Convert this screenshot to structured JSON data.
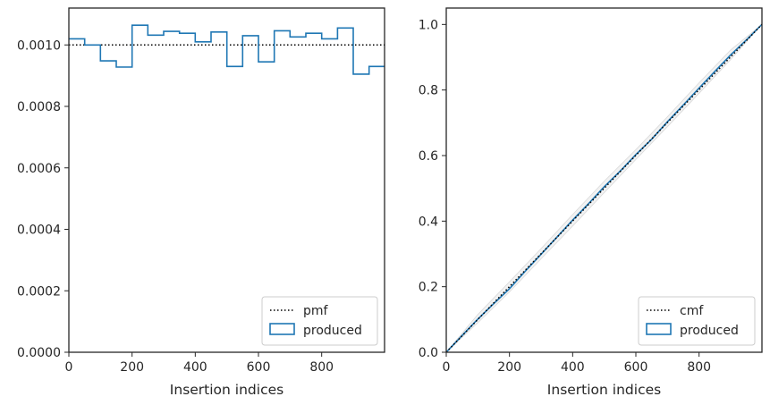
{
  "chart_data": [
    {
      "type": "step",
      "xlabel": "Insertion indices",
      "ylabel": "",
      "xlim": [
        0,
        999
      ],
      "ylim": [
        0,
        0.00112
      ],
      "xticks": [
        0,
        200,
        400,
        600,
        800
      ],
      "xtick_labels": [
        "0",
        "200",
        "400",
        "600",
        "800"
      ],
      "yticks": [
        0,
        0.0002,
        0.0004,
        0.0006,
        0.0008,
        0.001
      ],
      "ytick_labels": [
        "0.0000",
        "0.0002",
        "0.0004",
        "0.0006",
        "0.0008",
        "0.0010"
      ],
      "legend": {
        "location": "lower right",
        "entries": [
          "pmf",
          "produced"
        ]
      },
      "reference": {
        "name": "pmf",
        "style": "dotted",
        "color": "#000000",
        "y": 0.001
      },
      "series": [
        {
          "name": "produced",
          "color": "#1f77b4",
          "bin_edges": [
            0,
            50,
            100,
            150,
            200,
            250,
            300,
            350,
            400,
            450,
            500,
            550,
            600,
            650,
            700,
            750,
            800,
            850,
            900,
            950,
            1000
          ],
          "values": [
            0.00102,
            0.001,
            0.000948,
            0.000928,
            0.001064,
            0.001032,
            0.001044,
            0.001038,
            0.00101,
            0.001042,
            0.00093,
            0.00103,
            0.000945,
            0.001046,
            0.001026,
            0.001038,
            0.00102,
            0.001055,
            0.000905,
            0.00093
          ]
        }
      ]
    },
    {
      "type": "line",
      "xlabel": "Insertion indices",
      "ylabel": "",
      "xlim": [
        0,
        999
      ],
      "ylim": [
        0,
        1.05
      ],
      "xticks": [
        0,
        200,
        400,
        600,
        800
      ],
      "xtick_labels": [
        "0",
        "200",
        "400",
        "600",
        "800"
      ],
      "yticks": [
        0,
        0.2,
        0.4,
        0.6,
        0.8,
        1.0
      ],
      "ytick_labels": [
        "0.0",
        "0.2",
        "0.4",
        "0.6",
        "0.8",
        "1.0"
      ],
      "legend": {
        "location": "lower right",
        "entries": [
          "cmf",
          "produced"
        ]
      },
      "reference": {
        "name": "cmf",
        "style": "dotted",
        "color": "#000000",
        "x": [
          0,
          999
        ],
        "y": [
          0,
          1.0
        ]
      },
      "series": [
        {
          "name": "produced",
          "color": "#1f77b4",
          "x": [
            0,
            50,
            100,
            150,
            200,
            250,
            300,
            350,
            400,
            450,
            500,
            550,
            600,
            650,
            700,
            750,
            800,
            850,
            900,
            950,
            999
          ],
          "y": [
            0,
            0.051,
            0.101,
            0.148,
            0.194,
            0.247,
            0.299,
            0.351,
            0.403,
            0.453,
            0.505,
            0.552,
            0.603,
            0.65,
            0.703,
            0.754,
            0.806,
            0.857,
            0.907,
            0.953,
            1.0
          ]
        }
      ],
      "envelope": {
        "color": "#d9d9d9",
        "x": [
          0,
          100,
          200,
          300,
          400,
          500,
          600,
          700,
          800,
          900,
          999
        ],
        "lower": [
          0,
          0.09,
          0.184,
          0.285,
          0.385,
          0.487,
          0.588,
          0.688,
          0.79,
          0.893,
          1.0
        ],
        "upper": [
          0,
          0.115,
          0.215,
          0.316,
          0.42,
          0.522,
          0.618,
          0.718,
          0.822,
          0.922,
          1.0
        ]
      }
    }
  ]
}
